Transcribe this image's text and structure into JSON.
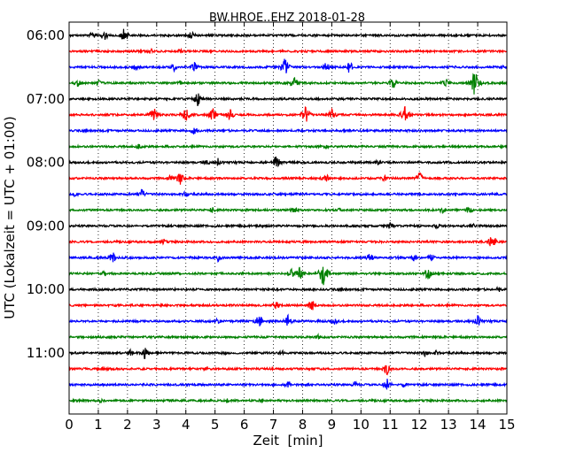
{
  "chart_data": {
    "type": "line",
    "title": "BW.HROE..EHZ 2018-01-28",
    "xlabel": "Zeit  [min]",
    "ylabel": "UTC (Lokalzeit = UTC + 01:00)",
    "xlim": [
      0,
      15
    ],
    "x_ticks": [
      "0",
      "1",
      "2",
      "3",
      "4",
      "5",
      "6",
      "7",
      "8",
      "9",
      "10",
      "11",
      "12",
      "13",
      "14",
      "15"
    ],
    "y_ticks": [
      "06:00",
      "07:00",
      "08:00",
      "09:00",
      "10:00",
      "11:00"
    ],
    "grid": "vertical dotted at each minute",
    "trace_colors": [
      "#000000",
      "#ff0000",
      "#0000ff",
      "#008000"
    ],
    "traces": [
      {
        "start": "06:00",
        "color": "black",
        "events": [
          [
            0.8,
            5
          ],
          [
            1.2,
            7
          ],
          [
            1.9,
            10
          ],
          [
            4.2,
            6
          ]
        ]
      },
      {
        "start": "06:15",
        "color": "red",
        "events": [
          [
            2.8,
            4
          ],
          [
            3.8,
            3
          ]
        ]
      },
      {
        "start": "06:30",
        "color": "blue",
        "events": [
          [
            2.3,
            4
          ],
          [
            3.6,
            5
          ],
          [
            4.3,
            6
          ],
          [
            7.4,
            12
          ],
          [
            8.8,
            6
          ],
          [
            9.6,
            8
          ],
          [
            14.8,
            3
          ]
        ]
      },
      {
        "start": "06:45",
        "color": "green",
        "events": [
          [
            0.3,
            5
          ],
          [
            1.0,
            4
          ],
          [
            3.8,
            4
          ],
          [
            7.7,
            9
          ],
          [
            11.1,
            7
          ],
          [
            12.9,
            6
          ],
          [
            13.9,
            16
          ]
        ]
      },
      {
        "start": "07:00",
        "color": "black",
        "events": [
          [
            4.4,
            9
          ]
        ]
      },
      {
        "start": "07:15",
        "color": "red",
        "events": [
          [
            2.9,
            9
          ],
          [
            4.0,
            10
          ],
          [
            4.9,
            10
          ],
          [
            5.5,
            8
          ],
          [
            8.1,
            11
          ],
          [
            9.0,
            7
          ],
          [
            11.5,
            12
          ]
        ]
      },
      {
        "start": "07:30",
        "color": "blue",
        "events": [
          [
            4.3,
            6
          ]
        ]
      },
      {
        "start": "07:45",
        "color": "green",
        "events": [
          [
            2.4,
            4
          ],
          [
            8.8,
            3
          ]
        ]
      },
      {
        "start": "08:00",
        "color": "black",
        "events": [
          [
            4.7,
            4
          ],
          [
            5.1,
            5
          ],
          [
            7.1,
            9
          ],
          [
            10.6,
            4
          ]
        ]
      },
      {
        "start": "08:15",
        "color": "red",
        "events": [
          [
            3.5,
            5
          ],
          [
            3.8,
            8
          ],
          [
            8.8,
            6
          ],
          [
            10.8,
            4
          ],
          [
            12.0,
            9
          ]
        ]
      },
      {
        "start": "08:30",
        "color": "blue",
        "events": [
          [
            0.2,
            4
          ],
          [
            2.5,
            6
          ],
          [
            4.0,
            5
          ]
        ]
      },
      {
        "start": "08:45",
        "color": "green",
        "events": [
          [
            4.9,
            4
          ],
          [
            7.7,
            5
          ],
          [
            9.3,
            4
          ],
          [
            12.8,
            5
          ],
          [
            13.7,
            5
          ]
        ]
      },
      {
        "start": "09:00",
        "color": "black",
        "events": [
          [
            11.0,
            5
          ],
          [
            12.6,
            4
          ],
          [
            13.8,
            4
          ]
        ]
      },
      {
        "start": "09:15",
        "color": "red",
        "events": [
          [
            3.2,
            5
          ],
          [
            14.5,
            12
          ]
        ]
      },
      {
        "start": "09:30",
        "color": "blue",
        "events": [
          [
            1.5,
            7
          ],
          [
            5.1,
            5
          ],
          [
            10.3,
            7
          ],
          [
            11.3,
            4
          ],
          [
            11.8,
            5
          ],
          [
            12.4,
            5
          ]
        ]
      },
      {
        "start": "09:45",
        "color": "green",
        "events": [
          [
            1.2,
            4
          ],
          [
            7.6,
            7
          ],
          [
            7.9,
            9
          ],
          [
            8.7,
            16
          ],
          [
            12.3,
            8
          ]
        ]
      },
      {
        "start": "10:00",
        "color": "black",
        "events": [
          [
            14.7,
            4
          ]
        ]
      },
      {
        "start": "10:15",
        "color": "red",
        "events": [
          [
            7.1,
            6
          ],
          [
            8.3,
            9
          ]
        ]
      },
      {
        "start": "10:30",
        "color": "blue",
        "events": [
          [
            5.1,
            4
          ],
          [
            6.5,
            9
          ],
          [
            7.5,
            7
          ],
          [
            9.1,
            5
          ],
          [
            14.0,
            7
          ]
        ]
      },
      {
        "start": "10:45",
        "color": "green",
        "events": [
          [
            8.5,
            4
          ]
        ]
      },
      {
        "start": "11:00",
        "color": "black",
        "events": [
          [
            2.1,
            4
          ],
          [
            2.6,
            8
          ],
          [
            5.3,
            3
          ],
          [
            7.3,
            4
          ],
          [
            12.2,
            5
          ],
          [
            12.6,
            4
          ]
        ]
      },
      {
        "start": "11:15",
        "color": "red",
        "events": [
          [
            1.2,
            4
          ],
          [
            4.7,
            4
          ],
          [
            10.9,
            8
          ]
        ]
      },
      {
        "start": "11:30",
        "color": "blue",
        "events": [
          [
            7.5,
            4
          ],
          [
            9.8,
            5
          ],
          [
            10.9,
            8
          ],
          [
            11.5,
            4
          ]
        ]
      },
      {
        "start": "11:45",
        "color": "green",
        "events": [
          [
            1.1,
            3
          ],
          [
            5.4,
            3
          ],
          [
            6.6,
            3
          ]
        ]
      }
    ]
  }
}
